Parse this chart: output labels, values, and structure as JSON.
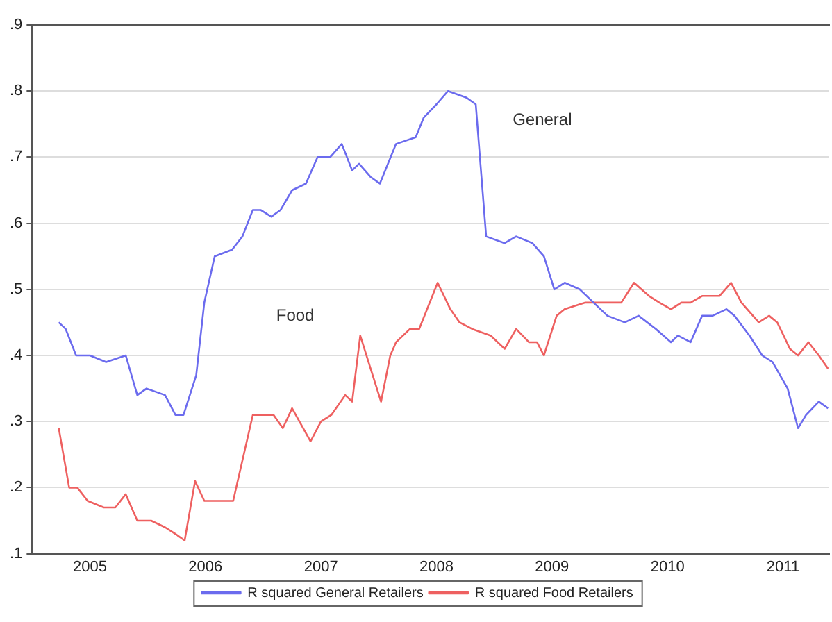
{
  "chart_data": {
    "type": "line",
    "xlim": [
      2005,
      2011.9
    ],
    "ylim": [
      0.1,
      0.9
    ],
    "xticks": [
      {
        "value": 2005.5,
        "label": "2005"
      },
      {
        "value": 2006.5,
        "label": "2006"
      },
      {
        "value": 2007.5,
        "label": "2007"
      },
      {
        "value": 2008.5,
        "label": "2008"
      },
      {
        "value": 2009.5,
        "label": "2009"
      },
      {
        "value": 2010.5,
        "label": "2010"
      },
      {
        "value": 2011.5,
        "label": "2011"
      }
    ],
    "yticks": [
      {
        "value": 0.1,
        "label": ".1"
      },
      {
        "value": 0.2,
        "label": ".2"
      },
      {
        "value": 0.3,
        "label": ".3"
      },
      {
        "value": 0.4,
        "label": ".4"
      },
      {
        "value": 0.5,
        "label": ".5"
      },
      {
        "value": 0.6,
        "label": ".6"
      },
      {
        "value": 0.7,
        "label": ".7"
      },
      {
        "value": 0.8,
        "label": ".8"
      },
      {
        "value": 0.9,
        "label": ".9"
      }
    ],
    "grid": "y",
    "legend": "bottom",
    "marker": "none",
    "line_style": "solid",
    "annotations": [
      "General",
      "Food"
    ],
    "series": [
      {
        "name": "R squared General Retailers",
        "color": "#6b6bee",
        "x": [
          2005.23,
          2005.29,
          2005.38,
          2005.5,
          2005.64,
          2005.81,
          2005.91,
          2005.99,
          2006.15,
          2006.24,
          2006.31,
          2006.42,
          2006.49,
          2006.58,
          2006.73,
          2006.82,
          2006.91,
          2006.98,
          2007.07,
          2007.15,
          2007.25,
          2007.37,
          2007.47,
          2007.58,
          2007.68,
          2007.77,
          2007.83,
          2007.93,
          2008.01,
          2008.15,
          2008.32,
          2008.39,
          2008.5,
          2008.6,
          2008.76,
          2008.84,
          2008.93,
          2009.09,
          2009.19,
          2009.33,
          2009.43,
          2009.52,
          2009.61,
          2009.74,
          2009.86,
          2009.98,
          2010.13,
          2010.25,
          2010.4,
          2010.53,
          2010.59,
          2010.7,
          2010.8,
          2010.89,
          2011.01,
          2011.08,
          2011.21,
          2011.32,
          2011.41,
          2011.54,
          2011.63,
          2011.7,
          2011.81,
          2011.89
        ],
        "values": [
          0.45,
          0.44,
          0.4,
          0.4,
          0.39,
          0.4,
          0.34,
          0.35,
          0.34,
          0.31,
          0.31,
          0.37,
          0.48,
          0.55,
          0.56,
          0.58,
          0.62,
          0.62,
          0.61,
          0.62,
          0.65,
          0.66,
          0.7,
          0.7,
          0.72,
          0.68,
          0.69,
          0.67,
          0.66,
          0.72,
          0.73,
          0.76,
          0.78,
          0.8,
          0.79,
          0.78,
          0.58,
          0.57,
          0.58,
          0.57,
          0.55,
          0.5,
          0.51,
          0.5,
          0.48,
          0.46,
          0.45,
          0.46,
          0.44,
          0.42,
          0.43,
          0.42,
          0.46,
          0.46,
          0.47,
          0.46,
          0.43,
          0.4,
          0.39,
          0.35,
          0.29,
          0.31,
          0.33,
          0.32
        ]
      },
      {
        "name": "R squared Food Retailers",
        "color": "#ee6060",
        "x": [
          2005.23,
          2005.32,
          2005.39,
          2005.48,
          2005.62,
          2005.72,
          2005.81,
          2005.91,
          2006.03,
          2006.15,
          2006.24,
          2006.32,
          2006.41,
          2006.49,
          2006.6,
          2006.74,
          2006.91,
          2007.01,
          2007.09,
          2007.17,
          2007.25,
          2007.41,
          2007.5,
          2007.59,
          2007.71,
          2007.77,
          2007.84,
          2007.93,
          2008.02,
          2008.1,
          2008.15,
          2008.27,
          2008.35,
          2008.51,
          2008.62,
          2008.7,
          2008.81,
          2008.97,
          2009.09,
          2009.19,
          2009.3,
          2009.37,
          2009.43,
          2009.54,
          2009.61,
          2009.79,
          2009.88,
          2010.1,
          2010.21,
          2010.34,
          2010.43,
          2010.53,
          2010.62,
          2010.7,
          2010.8,
          2010.95,
          2011.05,
          2011.14,
          2011.29,
          2011.38,
          2011.45,
          2011.56,
          2011.63,
          2011.72,
          2011.81,
          2011.89
        ],
        "values": [
          0.29,
          0.2,
          0.2,
          0.18,
          0.17,
          0.17,
          0.19,
          0.15,
          0.15,
          0.14,
          0.13,
          0.12,
          0.21,
          0.18,
          0.18,
          0.18,
          0.31,
          0.31,
          0.31,
          0.29,
          0.32,
          0.27,
          0.3,
          0.31,
          0.34,
          0.33,
          0.43,
          0.38,
          0.33,
          0.4,
          0.42,
          0.44,
          0.44,
          0.51,
          0.47,
          0.45,
          0.44,
          0.43,
          0.41,
          0.44,
          0.42,
          0.42,
          0.4,
          0.46,
          0.47,
          0.48,
          0.48,
          0.48,
          0.51,
          0.49,
          0.48,
          0.47,
          0.48,
          0.48,
          0.49,
          0.49,
          0.51,
          0.48,
          0.45,
          0.46,
          0.45,
          0.41,
          0.4,
          0.42,
          0.4,
          0.38
        ]
      }
    ]
  }
}
